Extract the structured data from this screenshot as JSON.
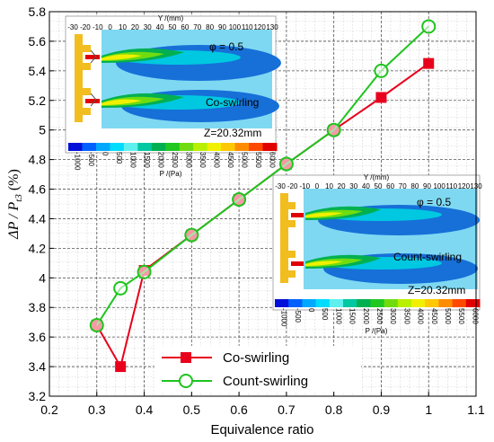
{
  "chart_data": {
    "type": "line",
    "xlabel": "Equivalence ratio",
    "ylabel_parts": [
      "ΔP / P",
      "t3",
      " (%)"
    ],
    "xlim": [
      0.2,
      1.1
    ],
    "ylim": [
      3.2,
      5.8
    ],
    "x_ticks": [
      "0.2",
      "0.3",
      "0.4",
      "0.5",
      "0.6",
      "0.7",
      "0.8",
      "0.9",
      "1",
      "1.1"
    ],
    "y_ticks": [
      "3.2",
      "3.4",
      "3.6",
      "3.8",
      "4",
      "4.2",
      "4.4",
      "4.6",
      "4.8",
      "5",
      "5.2",
      "5.4",
      "5.6",
      "5.8"
    ],
    "grid": "dashed major and minor",
    "legend_placement": "bottom-center",
    "series": [
      {
        "name": "Co-swirling",
        "color": "#e8001c",
        "marker": "filled-square",
        "x": [
          0.3,
          0.35,
          0.4,
          0.5,
          0.6,
          0.7,
          0.8,
          0.9,
          1.0
        ],
        "y": [
          3.68,
          3.4,
          4.05,
          4.29,
          4.53,
          4.77,
          5.0,
          5.22,
          5.45
        ]
      },
      {
        "name": "Count-swirling",
        "color": "#1ec41e",
        "marker": "open-circle",
        "x": [
          0.3,
          0.35,
          0.4,
          0.5,
          0.6,
          0.7,
          0.8,
          0.9,
          1.0
        ],
        "y": [
          3.68,
          3.93,
          4.04,
          4.29,
          4.53,
          4.77,
          5.0,
          5.4,
          5.7
        ]
      }
    ]
  },
  "insets": [
    {
      "top_label": "Y /(mm)",
      "top_ticks": [
        "-30",
        "-20",
        "-10",
        "0",
        "10",
        "20",
        "30",
        "40",
        "50",
        "60",
        "70",
        "80",
        "90",
        "100",
        "110",
        "120",
        "130"
      ],
      "phi": "φ = 0.5",
      "mode": "Co-swirling",
      "z": "Z=20.32mm",
      "colorbar_ticks": [
        "-1000",
        "-500",
        "0",
        "500",
        "1000",
        "1500",
        "2000",
        "2500",
        "3000",
        "3500",
        "4000",
        "4500",
        "5000",
        "5500",
        "6000"
      ],
      "colorbar_label": "P /(Pa)"
    },
    {
      "top_label": "Y /(mm)",
      "top_ticks": [
        "-30",
        "-20",
        "-10",
        "0",
        "10",
        "20",
        "30",
        "40",
        "50",
        "60",
        "70",
        "80",
        "90",
        "100",
        "110",
        "120",
        "130"
      ],
      "phi": "φ = 0.5",
      "mode": "Count-swirling",
      "z": "Z=20.32mm",
      "colorbar_ticks": [
        "-1000",
        "-500",
        "0",
        "500",
        "1000",
        "1500",
        "2000",
        "2500",
        "3000",
        "3500",
        "4000",
        "4500",
        "5000",
        "5500",
        "6000"
      ],
      "colorbar_label": "P /(Pa)"
    }
  ],
  "colors": {
    "colormap": [
      "#0010d8",
      "#0060ff",
      "#00a8ff",
      "#00dcff",
      "#5ef0ee",
      "#00c8a0",
      "#00b050",
      "#20c820",
      "#70dc10",
      "#b8f000",
      "#f0f000",
      "#ffc800",
      "#ff8c00",
      "#ff4800",
      "#e00000"
    ],
    "field": "#7fd8f2",
    "nozzle": "#f2bd1e"
  }
}
